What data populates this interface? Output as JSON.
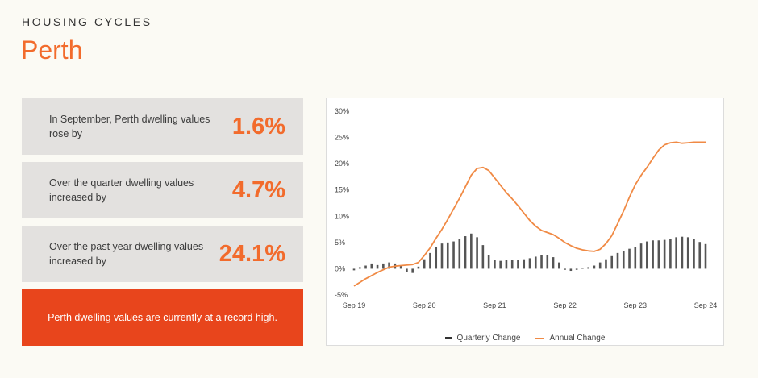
{
  "header": {
    "eyebrow": "HOUSING CYCLES",
    "title": "Perth"
  },
  "stats": [
    {
      "text": "In September, Perth dwelling values rose by",
      "value": "1.6%"
    },
    {
      "text": "Over the quarter dwelling values increased by",
      "value": "4.7%"
    },
    {
      "text": "Over the past year dwelling values increased by",
      "value": "24.1%"
    }
  ],
  "callout": "Perth dwelling values are currently at a record high.",
  "colors": {
    "accent": "#f26b2c",
    "callout_bg": "#e8451c",
    "panel_bg": "#e3e1df",
    "bar": "#555555",
    "line": "#f08a45"
  },
  "chart_data": {
    "type": "bar+line",
    "y_ticks": [
      "30%",
      "25%",
      "20%",
      "15%",
      "10%",
      "5%",
      "0%",
      "-5%"
    ],
    "ylim": [
      -5,
      30
    ],
    "x_ticks": [
      "Sep 19",
      "Sep 20",
      "Sep 21",
      "Sep 22",
      "Sep 23",
      "Sep 24"
    ],
    "x_tick_index": [
      0,
      12,
      24,
      36,
      48,
      60
    ],
    "legend": [
      "Quarterly Change",
      "Annual Change"
    ],
    "months": [
      "Sep 19",
      "Oct 19",
      "Nov 19",
      "Dec 19",
      "Jan 20",
      "Feb 20",
      "Mar 20",
      "Apr 20",
      "May 20",
      "Jun 20",
      "Jul 20",
      "Aug 20",
      "Sep 20",
      "Oct 20",
      "Nov 20",
      "Dec 20",
      "Jan 21",
      "Feb 21",
      "Mar 21",
      "Apr 21",
      "May 21",
      "Jun 21",
      "Jul 21",
      "Aug 21",
      "Sep 21",
      "Oct 21",
      "Nov 21",
      "Dec 21",
      "Jan 22",
      "Feb 22",
      "Mar 22",
      "Apr 22",
      "May 22",
      "Jun 22",
      "Jul 22",
      "Aug 22",
      "Sep 22",
      "Oct 22",
      "Nov 22",
      "Dec 22",
      "Jan 23",
      "Feb 23",
      "Mar 23",
      "Apr 23",
      "May 23",
      "Jun 23",
      "Jul 23",
      "Aug 23",
      "Sep 23",
      "Oct 23",
      "Nov 23",
      "Dec 23",
      "Jan 24",
      "Feb 24",
      "Mar 24",
      "Apr 24",
      "May 24",
      "Jun 24",
      "Jul 24",
      "Aug 24",
      "Sep 24"
    ],
    "series": [
      {
        "name": "Quarterly Change",
        "kind": "bar",
        "values": [
          -0.3,
          0.3,
          0.6,
          1.0,
          0.7,
          1.0,
          1.2,
          1.0,
          0.6,
          -0.6,
          -0.8,
          0.4,
          1.8,
          3.0,
          4.2,
          4.8,
          5.0,
          5.2,
          5.6,
          6.2,
          6.7,
          6.0,
          4.5,
          2.6,
          1.6,
          1.5,
          1.6,
          1.6,
          1.6,
          1.8,
          2.0,
          2.3,
          2.6,
          2.6,
          2.2,
          1.2,
          -0.2,
          -0.4,
          -0.2,
          0.1,
          0.3,
          0.6,
          1.2,
          1.8,
          2.4,
          3.0,
          3.4,
          3.8,
          4.2,
          4.8,
          5.2,
          5.4,
          5.4,
          5.5,
          5.7,
          6.0,
          6.1,
          6.0,
          5.6,
          5.1,
          4.7
        ]
      },
      {
        "name": "Annual Change",
        "kind": "line",
        "values": [
          -3.3,
          -2.6,
          -1.9,
          -1.3,
          -0.7,
          -0.2,
          0.3,
          0.5,
          0.6,
          0.7,
          0.8,
          1.2,
          2.5,
          4.0,
          5.8,
          7.5,
          9.4,
          11.4,
          13.4,
          15.6,
          17.8,
          19.1,
          19.3,
          18.7,
          17.3,
          15.9,
          14.5,
          13.3,
          12.0,
          10.6,
          9.2,
          8.1,
          7.3,
          6.9,
          6.5,
          5.8,
          5.0,
          4.4,
          3.9,
          3.6,
          3.4,
          3.3,
          3.7,
          4.8,
          6.3,
          8.6,
          11.0,
          13.6,
          16.0,
          17.8,
          19.3,
          21.0,
          22.6,
          23.6,
          24.0,
          24.1,
          23.9,
          24.0,
          24.1,
          24.1,
          24.1
        ]
      }
    ]
  }
}
